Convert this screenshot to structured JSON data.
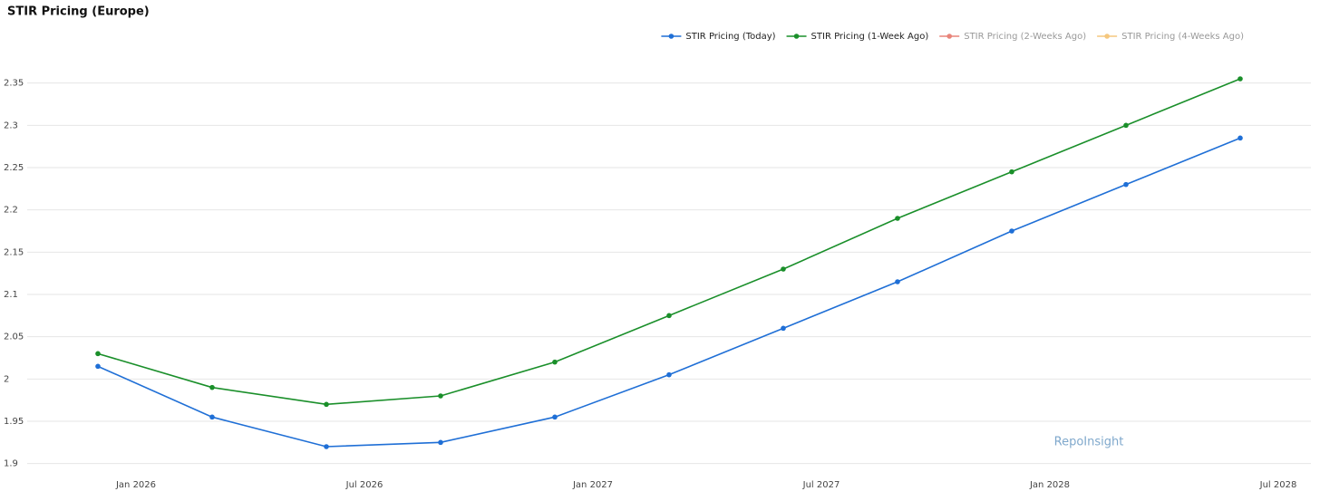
{
  "chart_data": {
    "type": "line",
    "title": "STIR Pricing (Europe)",
    "annotation": "RepoInsight",
    "x": [
      "2025-12",
      "2026-03",
      "2026-06",
      "2026-09",
      "2026-12",
      "2027-03",
      "2027-06",
      "2027-09",
      "2027-12",
      "2028-03",
      "2028-06"
    ],
    "series": [
      {
        "name": "STIR Pricing (Today)",
        "color": "#1f6fd6",
        "values": [
          2.015,
          1.955,
          1.92,
          1.925,
          1.955,
          2.005,
          2.06,
          2.115,
          2.175,
          2.23,
          2.285
        ]
      },
      {
        "name": "STIR Pricing (1-Week Ago)",
        "color": "#1a8f2a",
        "values": [
          2.03,
          1.99,
          1.97,
          1.98,
          2.02,
          2.075,
          2.13,
          2.19,
          2.245,
          2.3,
          2.355
        ]
      },
      {
        "name": "STIR Pricing (2-Weeks Ago)",
        "color": "#e8847a",
        "visible": "legendonly",
        "values": [
          null,
          null,
          null,
          null,
          null,
          null,
          null,
          null,
          null,
          null,
          null
        ]
      },
      {
        "name": "STIR Pricing (4-Weeks Ago)",
        "color": "#f5c77e",
        "visible": "legendonly",
        "values": [
          null,
          null,
          null,
          null,
          null,
          null,
          null,
          null,
          null,
          null,
          null
        ]
      }
    ],
    "xlim": [
      "2025-10",
      "2028-08"
    ],
    "xticks": [
      {
        "value": "2026-01",
        "label": "Jan 2026"
      },
      {
        "value": "2026-07",
        "label": "Jul 2026"
      },
      {
        "value": "2027-01",
        "label": "Jan 2027"
      },
      {
        "value": "2027-07",
        "label": "Jul 2027"
      },
      {
        "value": "2028-01",
        "label": "Jan 2028"
      },
      {
        "value": "2028-07",
        "label": "Jul 2028"
      }
    ],
    "ylim": [
      1.89,
      2.37
    ],
    "yticks": [
      1.9,
      1.95,
      2,
      2.05,
      2.1,
      2.15,
      2.2,
      2.25,
      2.3,
      2.35
    ],
    "grid": true,
    "legend": "top-right"
  }
}
